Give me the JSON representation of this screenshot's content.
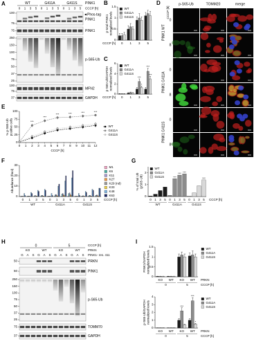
{
  "figure": {
    "A": {
      "label": "A",
      "groups": [
        "WT",
        "G411A",
        "G411S"
      ],
      "protein": "PINK1",
      "times": [
        "0",
        "1",
        "3",
        "5",
        "0",
        "1",
        "3",
        "5",
        "0",
        "1",
        "3",
        "5"
      ],
      "time_label": "CCCP [h]",
      "blots": [
        {
          "name": "PINK1",
          "tag": "Phos-tag",
          "markers": [
            "100",
            "75"
          ]
        },
        {
          "name": "PINK1",
          "markers": [
            "75"
          ]
        },
        {
          "name": "p-S65-Ub",
          "markers": [
            "250",
            "150",
            "100",
            "75",
            "50",
            "37",
            "25"
          ]
        },
        {
          "name": "MFN2",
          "markers": [
            "100",
            "75"
          ]
        },
        {
          "name": "GAPDH",
          "markers": [
            "37"
          ]
        }
      ]
    },
    "B": {
      "label": "B",
      "ylabel": [
        "p-total PINK1",
        "normalized levels"
      ],
      "ylim": [
        0,
        1.5
      ],
      "yticks": [
        0,
        0.5,
        1,
        1.5
      ],
      "categories": [
        "0",
        "1",
        "3",
        "5"
      ],
      "xlabel": "CCCP [h]",
      "legend": "upper left",
      "series": [
        {
          "name": "WT",
          "color": "#1a1a1a",
          "values": [
            0.2,
            0.5,
            0.9,
            1.1
          ],
          "errors": [
            0.1,
            0.15,
            0.15,
            0.15
          ]
        },
        {
          "name": "G411A",
          "color": "#8c8c8c",
          "values": [
            0.2,
            0.6,
            1.0,
            1.2
          ],
          "errors": [
            0.1,
            0.15,
            0.2,
            0.15
          ]
        },
        {
          "name": "G411S",
          "color": "#d9d9d9",
          "values": [
            0.25,
            0.5,
            0.9,
            1.1
          ],
          "errors": [
            0.1,
            0.1,
            0.15,
            0.2
          ]
        }
      ]
    },
    "C": {
      "label": "C",
      "ylabel": [
        "p-S65-Ub/GAPDH",
        "normalized levels"
      ],
      "ylim": [
        0,
        6
      ],
      "yticks": [
        0,
        2,
        4,
        6
      ],
      "categories": [
        "0",
        "1",
        "3",
        "5"
      ],
      "xlabel": "CCCP [h]",
      "legend": "upper left",
      "series": [
        {
          "name": "WT",
          "color": "#1a1a1a",
          "values": [
            0.05,
            0.2,
            1.0,
            1.0
          ],
          "errors": [
            0.05,
            0.1,
            0.3,
            0.3
          ]
        },
        {
          "name": "G411A",
          "color": "#8c8c8c",
          "values": [
            0.05,
            0.3,
            2.5,
            4.5
          ],
          "errors": [
            0.05,
            0.1,
            0.5,
            0.6
          ],
          "significance": [
            null,
            null,
            "***",
            "***"
          ]
        },
        {
          "name": "G411S",
          "color": "#d9d9d9",
          "values": [
            0.05,
            0.2,
            1.3,
            3.0
          ],
          "errors": [
            0.05,
            0.1,
            0.3,
            0.5
          ],
          "significance": [
            null,
            null,
            "*",
            "***"
          ]
        }
      ]
    },
    "D": {
      "label": "D",
      "columns": [
        "p-S65-Ub",
        "TOMM20",
        "merge"
      ],
      "time_label": "CCCP [h]",
      "rows": [
        {
          "name": "PINK1 WT",
          "times": [
            "0",
            "8"
          ]
        },
        {
          "name": "PINK1 G411A",
          "times": [
            "0",
            "8"
          ]
        },
        {
          "name": "PINK1 G411S",
          "times": [
            "0",
            "8"
          ]
        }
      ]
    },
    "E": {
      "label": "E",
      "ylabel": [
        "% p-S65-Ub",
        "positive cells"
      ],
      "ylim": [
        0,
        100
      ],
      "yticks": [
        0,
        25,
        50,
        75,
        100
      ],
      "x": [
        0,
        2,
        4,
        6,
        8,
        10,
        12
      ],
      "xlim": [
        0,
        12
      ],
      "xticks": [
        0,
        1,
        2,
        3,
        4,
        5,
        6,
        7,
        8,
        9,
        10,
        11,
        12
      ],
      "xlabel": "CCCP [h]",
      "legend": "right",
      "series": [
        {
          "name": "WT",
          "color": "#000000",
          "line": "dashed",
          "values": [
            2,
            15,
            30,
            40,
            45,
            50,
            55
          ],
          "errors": [
            1,
            4,
            5,
            5,
            5,
            6,
            6
          ]
        },
        {
          "name": "G411A",
          "color": "#7f7f7f",
          "line": "dashed",
          "values": [
            2,
            55,
            70,
            80,
            82,
            85,
            88
          ],
          "errors": [
            1,
            6,
            6,
            5,
            5,
            5,
            4
          ],
          "significance": [
            null,
            "***",
            "***",
            "***",
            "***",
            "***",
            "***"
          ]
        },
        {
          "name": "G411S",
          "color": "#bfbfbf",
          "line": "dotted",
          "values": [
            2,
            20,
            35,
            45,
            50,
            55,
            60
          ],
          "errors": [
            1,
            4,
            5,
            5,
            6,
            6,
            6
          ]
        }
      ]
    },
    "F": {
      "label": "F",
      "ylabel": [
        "Abundance (fmol)"
      ],
      "ylim": [
        0,
        30
      ],
      "yticks": [
        0,
        10,
        20,
        30
      ],
      "categories": [
        "0",
        "1",
        "3",
        "5",
        "0",
        "1",
        "3",
        "5",
        "0",
        "1",
        "3",
        "5"
      ],
      "groups": [
        "WT",
        "G411A",
        "G411S"
      ],
      "xlabel": "CCCP [h]",
      "legend": "right",
      "series": [
        {
          "name": "M1",
          "color": "#f4a6c6",
          "values": [
            0.1,
            0.1,
            0.2,
            0.2,
            0.1,
            0.2,
            0.3,
            0.3,
            0.1,
            0.1,
            0.2,
            0.2
          ]
        },
        {
          "name": "K6",
          "color": "#4bb3a7",
          "values": [
            0.3,
            0.5,
            0.8,
            1,
            0.3,
            1.5,
            2.5,
            3,
            0.3,
            0.6,
            1,
            1.2
          ]
        },
        {
          "name": "K11",
          "color": "#a99bd6",
          "values": [
            0.5,
            0.6,
            1,
            1.2,
            0.5,
            2,
            3,
            3.5,
            0.5,
            0.8,
            1.2,
            1.5
          ]
        },
        {
          "name": "K27",
          "color": "#f29b4b",
          "values": [
            0.2,
            0.3,
            0.5,
            0.6,
            0.2,
            1,
            1.5,
            2,
            0.2,
            0.4,
            0.6,
            0.8
          ]
        },
        {
          "name": "K29 (nd)",
          "color": "#9e9e9e",
          "values": [
            null,
            null,
            null,
            null,
            null,
            null,
            null,
            null,
            null,
            null,
            null,
            null
          ]
        },
        {
          "name": "K33",
          "color": "#f2d44b",
          "values": [
            0.1,
            0.2,
            0.3,
            0.3,
            0.1,
            0.5,
            0.8,
            1,
            0.1,
            0.2,
            0.3,
            0.4
          ]
        },
        {
          "name": "K48",
          "color": "#7fb7e6",
          "values": [
            3,
            4,
            6,
            7,
            3,
            10,
            15,
            18,
            3,
            5,
            7,
            8
          ]
        },
        {
          "name": "K63",
          "color": "#1f2a6b",
          "values": [
            1,
            3,
            5,
            6,
            1,
            12,
            20,
            25,
            1,
            4,
            6,
            8
          ]
        }
      ]
    },
    "G": {
      "label": "G",
      "ylabel": [
        "% of total Ub",
        "(pS65-Ub)"
      ],
      "ylim": [
        0,
        2.5
      ],
      "yticks": [
        0,
        1,
        2
      ],
      "categories": [
        "0",
        "1",
        "3",
        "5",
        "0",
        "1",
        "3",
        "5",
        "0",
        "1",
        "3",
        "5"
      ],
      "groups": [
        "WT",
        "G411A",
        "G411S"
      ],
      "xlabel": "CCCP [h]",
      "legend": "upper left",
      "series": [
        {
          "name": "WT",
          "color": "#1a1a1a",
          "values": [
            0.05,
            0.2,
            0.5,
            0.8,
            null,
            null,
            null,
            null,
            null,
            null,
            null,
            null
          ]
        },
        {
          "name": "G411A",
          "color": "#8c8c8c",
          "values": [
            null,
            null,
            null,
            null,
            0.1,
            1.5,
            1.8,
            1.9,
            null,
            null,
            null,
            null
          ],
          "significance": [
            null,
            null,
            null,
            null,
            null,
            "***",
            "***",
            "***",
            null,
            null,
            null,
            null
          ]
        },
        {
          "name": "G411S",
          "color": "#d9d9d9",
          "values": [
            null,
            null,
            null,
            null,
            null,
            null,
            null,
            null,
            0.05,
            0.3,
            0.9,
            1.4
          ],
          "significance": [
            null,
            null,
            null,
            null,
            null,
            null,
            null,
            null,
            null,
            null,
            null,
            "***"
          ]
        }
      ]
    },
    "H": {
      "label": "H",
      "times": [
        "0",
        "5"
      ],
      "time_label": "CCCP [h]",
      "prkn": [
        "KO",
        "WT",
        "KO",
        "WT"
      ],
      "prkn_label": "PRKN",
      "lanes": [
        "G",
        "A",
        "S",
        "G",
        "A",
        "S",
        "G",
        "A",
        "S",
        "G",
        "A",
        "S"
      ],
      "lanes_label": "PINK1- res. 411",
      "blots": [
        {
          "name": "PRKN",
          "markers": [
            "50"
          ]
        },
        {
          "name": "PINK1",
          "markers": [
            "50"
          ]
        },
        {
          "name": "p-S65-Ub",
          "markers": [
            "250",
            "150",
            "100",
            "75",
            "50",
            "37",
            "25"
          ]
        },
        {
          "name": "TOMM70",
          "markers": [
            "75"
          ]
        },
        {
          "name": "GAPDH",
          "markers": [
            "37"
          ]
        }
      ]
    },
    "I": {
      "label": "I",
      "charts": [
        {
          "ylabel": [
            "PINK1/GAPDH",
            "normalized levels"
          ],
          "ylim": [
            0,
            1.5
          ],
          "yticks": [
            0,
            0.5,
            1,
            1.5
          ],
          "categories": [
            "KO",
            "WT",
            "KO",
            "WT"
          ],
          "category_label": "PRKN",
          "groups": [
            "0",
            "5"
          ],
          "xlabel": "CCCP [h]",
          "legend": "right",
          "series": [
            {
              "name": "WT",
              "color": "#1a1a1a",
              "values": [
                0.02,
                0.02,
                1.0,
                1.05
              ],
              "errors": [
                0.01,
                0.01,
                0.15,
                0.15
              ]
            },
            {
              "name": "G411A",
              "color": "#8c8c8c",
              "values": [
                0.02,
                0.02,
                1.1,
                1.1
              ],
              "errors": [
                0.01,
                0.01,
                0.15,
                0.2
              ]
            },
            {
              "name": "G411S",
              "color": "#d9d9d9",
              "values": [
                0.02,
                0.02,
                1.0,
                1.0
              ],
              "errors": [
                0.01,
                0.01,
                0.15,
                0.15
              ]
            }
          ]
        },
        {
          "ylabel": [
            "p-S65-Ub/GAPDH",
            "normalized levels"
          ],
          "ylim": [
            0,
            4
          ],
          "yticks": [
            0,
            1,
            2,
            3,
            4
          ],
          "categories": [
            "KO",
            "WT",
            "KO",
            "WT"
          ],
          "category_label": "PRKN",
          "groups": [
            "0",
            "5"
          ],
          "xlabel": "CCCP [h]",
          "legend": "right",
          "series": [
            {
              "name": "WT",
              "color": "#1a1a1a",
              "values": [
                0.02,
                0.02,
                1.0,
                1.0
              ],
              "errors": [
                0.01,
                0.01,
                0.2,
                0.2
              ]
            },
            {
              "name": "G411A",
              "color": "#8c8c8c",
              "values": [
                0.02,
                0.02,
                2.2,
                3.5
              ],
              "errors": [
                0.01,
                0.01,
                0.4,
                0.4
              ],
              "significance": [
                null,
                null,
                "***",
                "***"
              ]
            },
            {
              "name": "G411S",
              "color": "#d9d9d9",
              "values": [
                0.02,
                0.02,
                0.4,
                0.5
              ],
              "errors": [
                0.01,
                0.01,
                0.1,
                0.1
              ],
              "significance": [
                null,
                null,
                null,
                "*"
              ]
            }
          ]
        }
      ]
    }
  }
}
